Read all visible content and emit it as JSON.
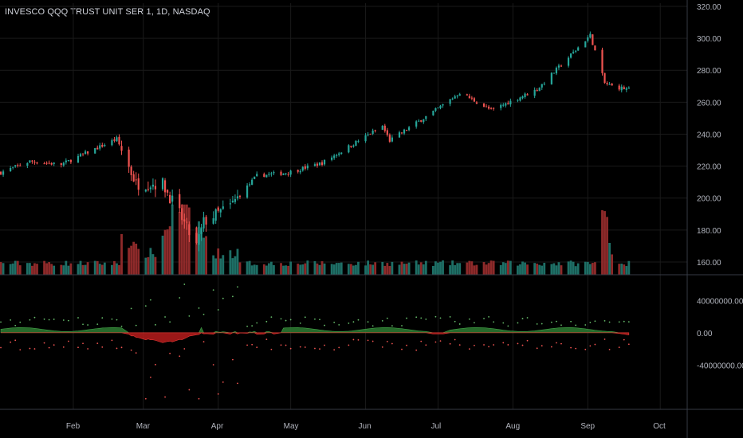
{
  "header": {
    "title": "INVESCO QQQ TRUST UNIT SER 1, 1D, NASDAQ"
  },
  "colors": {
    "up": "#26a69a",
    "down": "#ef5350",
    "vol_up": "#1e6f66",
    "vol_down": "#8e2a2a",
    "osc_pos": "#2e7d32",
    "osc_neg": "#b71c1c",
    "grid": "#1a1a1a",
    "axis": "#363a45"
  },
  "chart_data": [
    {
      "type": "candlestick",
      "ylim": [
        152,
        322
      ],
      "y_ticks": [
        "320.00",
        "300.00",
        "280.00",
        "260.00",
        "240.00",
        "220.00",
        "200.00",
        "180.00",
        "160.00"
      ],
      "x_ticks": [
        "Feb",
        "Mar",
        "Apr",
        "May",
        "Jun",
        "Jul",
        "Aug",
        "Sep",
        "Oct"
      ],
      "anchors": [
        {
          "date": "Jan 02",
          "close": 216
        },
        {
          "date": "Jan 14",
          "close": 223
        },
        {
          "date": "Jan 27",
          "close": 221
        },
        {
          "date": "Feb 19",
          "close": 237
        },
        {
          "date": "Feb 27",
          "close": 209
        },
        {
          "date": "Mar 09",
          "close": 209
        },
        {
          "date": "Mar 16",
          "close": 190
        },
        {
          "date": "Mar 20",
          "close": 178
        },
        {
          "date": "Mar 23",
          "close": 170
        },
        {
          "date": "Mar 26",
          "close": 185
        },
        {
          "date": "Apr 06",
          "close": 195
        },
        {
          "date": "Apr 17",
          "close": 214
        },
        {
          "date": "Apr 30",
          "close": 216
        },
        {
          "date": "May 14",
          "close": 222
        },
        {
          "date": "Jun 08",
          "close": 245
        },
        {
          "date": "Jun 11",
          "close": 236
        },
        {
          "date": "Jun 30",
          "close": 255
        },
        {
          "date": "Jul 10",
          "close": 266
        },
        {
          "date": "Jul 23",
          "close": 255
        },
        {
          "date": "Aug 11",
          "close": 268
        },
        {
          "date": "Sep 02",
          "close": 302
        },
        {
          "date": "Sep 08",
          "close": 272
        },
        {
          "date": "Sep 11",
          "close": 270
        },
        {
          "date": "Sep 18",
          "close": 268
        }
      ]
    },
    {
      "type": "bar",
      "series": [
        {
          "name": "",
          "note_scale": "relative"
        }
      ],
      "peaks": [
        {
          "date": "Feb 21",
          "relative": 0.55
        },
        {
          "date": "Mar 16",
          "relative": 0.95
        },
        {
          "date": "Mar 20",
          "relative": 0.85
        },
        {
          "date": "Sep 08",
          "relative": 0.9
        }
      ]
    },
    {
      "type": "area",
      "y_ticks": [
        "40000000.00",
        "0.00",
        "-40000000.00"
      ],
      "ylim": [
        -95000000,
        72000000
      ],
      "values_note": "smoothed oscillator near zero, negative dip in March"
    }
  ]
}
